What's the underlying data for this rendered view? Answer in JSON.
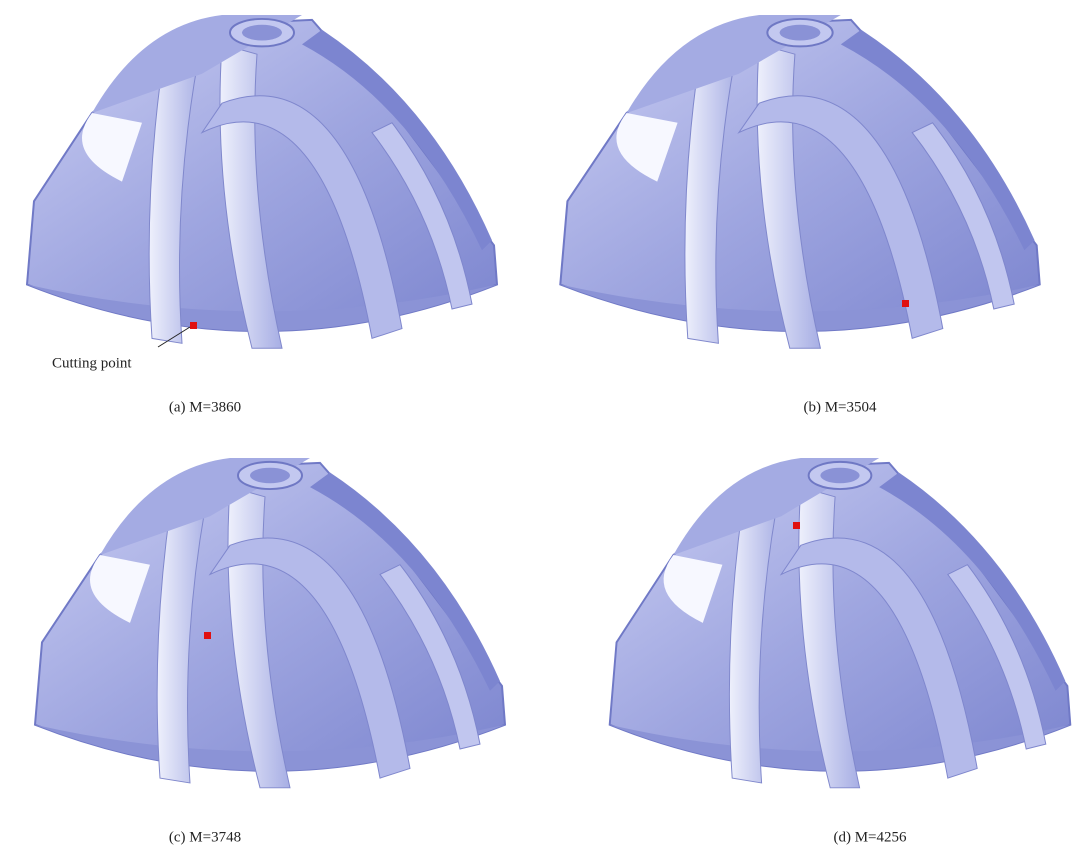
{
  "panels": [
    {
      "caption": "(a) M=3860",
      "annotation": "Cutting point"
    },
    {
      "caption": "(b) M=3504"
    },
    {
      "caption": "(c) M=3748"
    },
    {
      "caption": "(d) M=4256"
    }
  ]
}
